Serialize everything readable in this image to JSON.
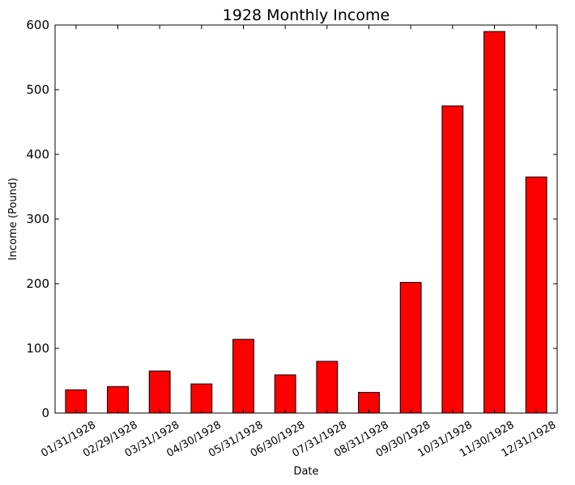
{
  "chart_data": {
    "type": "bar",
    "title": "1928 Monthly Income",
    "xlabel": "Date",
    "ylabel": "Income (Pound)",
    "categories": [
      "01/31/1928",
      "02/29/1928",
      "03/31/1928",
      "04/30/1928",
      "05/31/1928",
      "06/30/1928",
      "07/31/1928",
      "08/31/1928",
      "09/30/1928",
      "10/31/1928",
      "11/30/1928",
      "12/31/1928"
    ],
    "values": [
      36,
      41,
      65,
      45,
      114,
      59,
      80,
      32,
      202,
      475,
      590,
      365
    ],
    "ylim": [
      0,
      600
    ],
    "yticks": [
      0,
      100,
      200,
      300,
      400,
      500,
      600
    ],
    "ytick_labels": [
      "0",
      "100",
      "200",
      "300",
      "400",
      "500",
      "600"
    ],
    "bar_color": "#ff0000",
    "grid": false,
    "legend": false
  }
}
